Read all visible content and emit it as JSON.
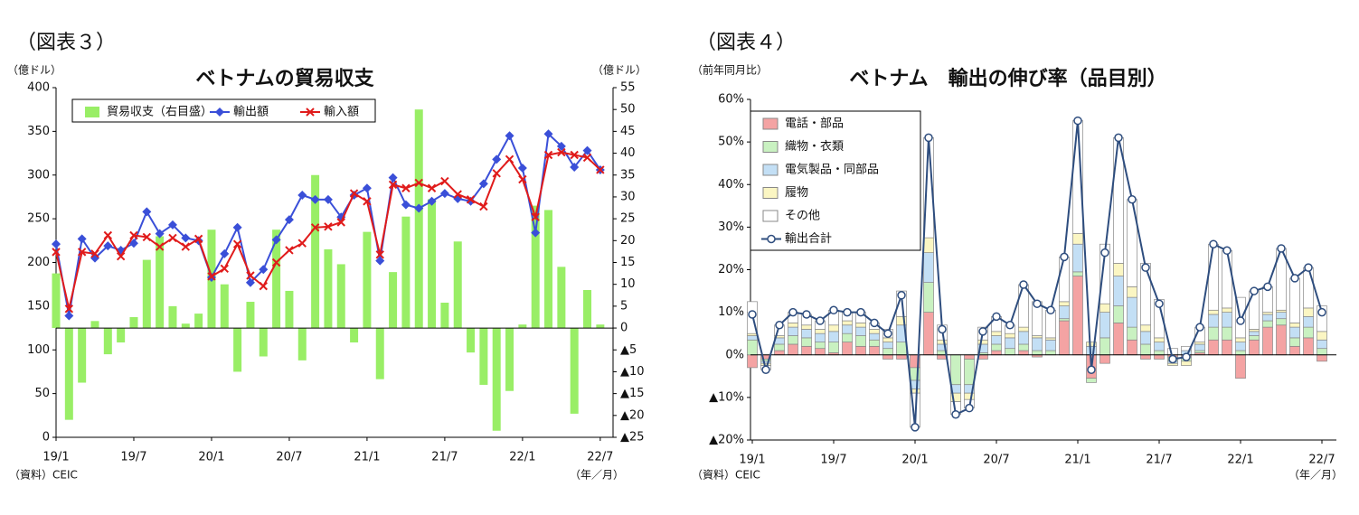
{
  "chart_data": [
    {
      "type": "combo",
      "figure_label": "（図表３）",
      "title": "ベトナムの貿易収支",
      "y_unit": "（億ドル）",
      "y2_unit": "（億ドル）",
      "source": "（資料）CEIC",
      "x_unit": "（年／月）",
      "legend": "top-left",
      "categories": [
        "19/1",
        null,
        null,
        null,
        null,
        null,
        "19/7",
        null,
        null,
        null,
        null,
        null,
        "20/1",
        null,
        null,
        null,
        null,
        null,
        "20/7",
        null,
        null,
        null,
        null,
        null,
        "21/1",
        null,
        null,
        null,
        null,
        null,
        "21/7",
        null,
        null,
        null,
        null,
        null,
        "22/1",
        null,
        null,
        null,
        null,
        null,
        "22/7"
      ],
      "ylim": [
        0,
        400
      ],
      "yticks": [
        0,
        50,
        100,
        150,
        200,
        250,
        300,
        350,
        400
      ],
      "y2lim": [
        -25,
        55
      ],
      "y2ticks": [
        {
          "value": -25,
          "label": "▲25"
        },
        {
          "value": -20,
          "label": "▲20"
        },
        {
          "value": -15,
          "label": "▲15"
        },
        {
          "value": -10,
          "label": "▲10"
        },
        {
          "value": -5,
          "label": "▲5"
        },
        0,
        5,
        10,
        15,
        20,
        25,
        30,
        35,
        40,
        45,
        50,
        55
      ],
      "series": [
        {
          "name": "貿易収支（右目盛）",
          "type": "bar",
          "axis": "y2",
          "color": "#99ee66",
          "values": [
            12.5,
            -21,
            -12.5,
            1.6,
            -6,
            -3.3,
            2.5,
            15.6,
            21,
            5,
            1,
            3.3,
            22.5,
            10,
            -10,
            6,
            -6.5,
            22.5,
            8.5,
            -7.4,
            35,
            18,
            14.6,
            -3.3,
            22,
            -11.7,
            12.8,
            25.5,
            50,
            29.5,
            5.8,
            19.8,
            -5.6,
            -13,
            -23.5,
            -14.4,
            0.8,
            28,
            27,
            14,
            -19.6,
            8.7,
            0.8
          ]
        },
        {
          "name": "輸出額",
          "type": "line",
          "marker": "diamond",
          "color": "#3a4fd8",
          "values": [
            221,
            139,
            227,
            205,
            219,
            214,
            222,
            258,
            233,
            243,
            228,
            225,
            183,
            210,
            240,
            177,
            192,
            226,
            249,
            277,
            272,
            272,
            252,
            277,
            285,
            202,
            297,
            266,
            262,
            270,
            279,
            273,
            270,
            290,
            318,
            345,
            308,
            234,
            347,
            333,
            309,
            328,
            306
          ]
        },
        {
          "name": "輸入額",
          "type": "line",
          "marker": "x",
          "color": "#e01b1b",
          "values": [
            212,
            147,
            212,
            210,
            231,
            207,
            231,
            229,
            218,
            228,
            218,
            227,
            184,
            193,
            221,
            185,
            173,
            200,
            214,
            222,
            240,
            241,
            246,
            279,
            270,
            209,
            289,
            285,
            291,
            285,
            293,
            278,
            272,
            264,
            302,
            318,
            295,
            252,
            323,
            326,
            323,
            320,
            306
          ]
        }
      ]
    },
    {
      "type": "stacked_bar_line",
      "figure_label": "（図表４）",
      "title": "ベトナム　輸出の伸び率（品目別）",
      "y_unit": "（前年同月比）",
      "source": "（資料）CEIC",
      "x_unit": "（年／月）",
      "legend": "top-left",
      "categories": [
        "19/1",
        null,
        null,
        null,
        null,
        null,
        "19/7",
        null,
        null,
        null,
        null,
        null,
        "20/1",
        null,
        null,
        null,
        null,
        null,
        "20/7",
        null,
        null,
        null,
        null,
        null,
        "21/1",
        null,
        null,
        null,
        null,
        null,
        "21/7",
        null,
        null,
        null,
        null,
        null,
        "22/1",
        null,
        null,
        null,
        null,
        null,
        "22/7"
      ],
      "ylim": [
        -20,
        60
      ],
      "yticks": [
        {
          "value": -20,
          "label": "▲20%"
        },
        {
          "value": -10,
          "label": "▲10%"
        },
        {
          "value": 0,
          "label": "0%"
        },
        {
          "value": 10,
          "label": "10%"
        },
        {
          "value": 20,
          "label": "20%"
        },
        {
          "value": 30,
          "label": "30%"
        },
        {
          "value": 40,
          "label": "40%"
        },
        {
          "value": 50,
          "label": "50%"
        },
        {
          "value": 60,
          "label": "60%"
        }
      ],
      "series": [
        {
          "name": "電話・部品",
          "type": "bar",
          "color": "#f4a3a3",
          "values": [
            -3,
            -1,
            1,
            2.5,
            2,
            1.5,
            0.5,
            3,
            2,
            2,
            -1,
            -1,
            -3,
            10,
            -1,
            0,
            -1,
            -1,
            1,
            0,
            1,
            -0.5,
            0,
            8,
            18.5,
            -5.5,
            -2,
            7.5,
            3.5,
            -1,
            -1,
            -0.5,
            -0.5,
            0.5,
            3.5,
            3.5,
            -5.5,
            3.5,
            6.5,
            7,
            2,
            4,
            -1.5
          ]
        },
        {
          "name": "織物・衣類",
          "type": "bar",
          "color": "#c9f1c1",
          "values": [
            3.5,
            -0.5,
            1.5,
            2,
            2,
            1.5,
            2.5,
            2,
            2.5,
            1.5,
            1.5,
            3,
            -3,
            7,
            1,
            -7,
            -6,
            0.5,
            1.5,
            1.5,
            1.5,
            1,
            1,
            0.5,
            1,
            -1,
            4,
            4,
            3,
            2.5,
            1,
            -1,
            -1,
            0.5,
            3,
            3,
            1,
            1,
            1.5,
            1.5,
            2,
            2.5,
            1.5
          ]
        },
        {
          "name": "電気製品・同部品",
          "type": "bar",
          "color": "#c3dff5",
          "values": [
            1,
            -0.5,
            1.5,
            2,
            2,
            2,
            2.5,
            2,
            2,
            1.5,
            1.5,
            4,
            -2,
            7,
            1.5,
            -2,
            -2,
            2,
            2,
            2.5,
            3,
            3,
            2.5,
            3,
            6.5,
            2,
            6,
            7,
            7,
            3,
            2,
            -0.5,
            1,
            1.5,
            3,
            3.5,
            2,
            1,
            1.5,
            1.5,
            2.5,
            2.5,
            2
          ]
        },
        {
          "name": "履物",
          "type": "bar",
          "color": "#fbf6c3",
          "values": [
            0.5,
            -0.5,
            0.5,
            1,
            1,
            1,
            1.5,
            1,
            1,
            1,
            1,
            2,
            -1,
            3.5,
            1,
            -2,
            -1.5,
            1,
            1,
            1,
            1,
            0.5,
            0.5,
            1,
            2.5,
            1,
            2,
            3,
            2.5,
            1.5,
            1,
            -0.5,
            -1,
            0.5,
            1,
            1,
            1,
            0.5,
            0.5,
            0.5,
            1,
            2,
            2
          ]
        },
        {
          "name": "その他",
          "type": "bar",
          "color": "#ffffff",
          "values": [
            7.5,
            -1,
            2.5,
            2.5,
            2.5,
            2,
            3.5,
            2,
            2.5,
            1.5,
            2,
            6,
            -8,
            23.5,
            3.5,
            -3,
            -2,
            3,
            3.5,
            2,
            10,
            8,
            6.5,
            10.5,
            26.5,
            0,
            14,
            29.5,
            20.5,
            14.5,
            9,
            1.5,
            1,
            3.5,
            15.5,
            13.5,
            9.5,
            9,
            6,
            14.5,
            10.5,
            9.5,
            6
          ]
        },
        {
          "name": "輸出合計",
          "type": "line",
          "marker": "circle",
          "color": "#2e4d7e",
          "values": [
            9.5,
            -3.5,
            7,
            10,
            9.5,
            8,
            10.5,
            10,
            10,
            7.5,
            5,
            14,
            -17,
            51,
            6,
            -14,
            -12.5,
            5.5,
            9,
            7,
            16.5,
            12,
            10.5,
            23,
            55,
            -3.5,
            24,
            51,
            36.5,
            20.5,
            12,
            -1,
            -0.5,
            6.5,
            26,
            24.5,
            8,
            15,
            16,
            25,
            18,
            20.5,
            10
          ]
        }
      ]
    }
  ]
}
